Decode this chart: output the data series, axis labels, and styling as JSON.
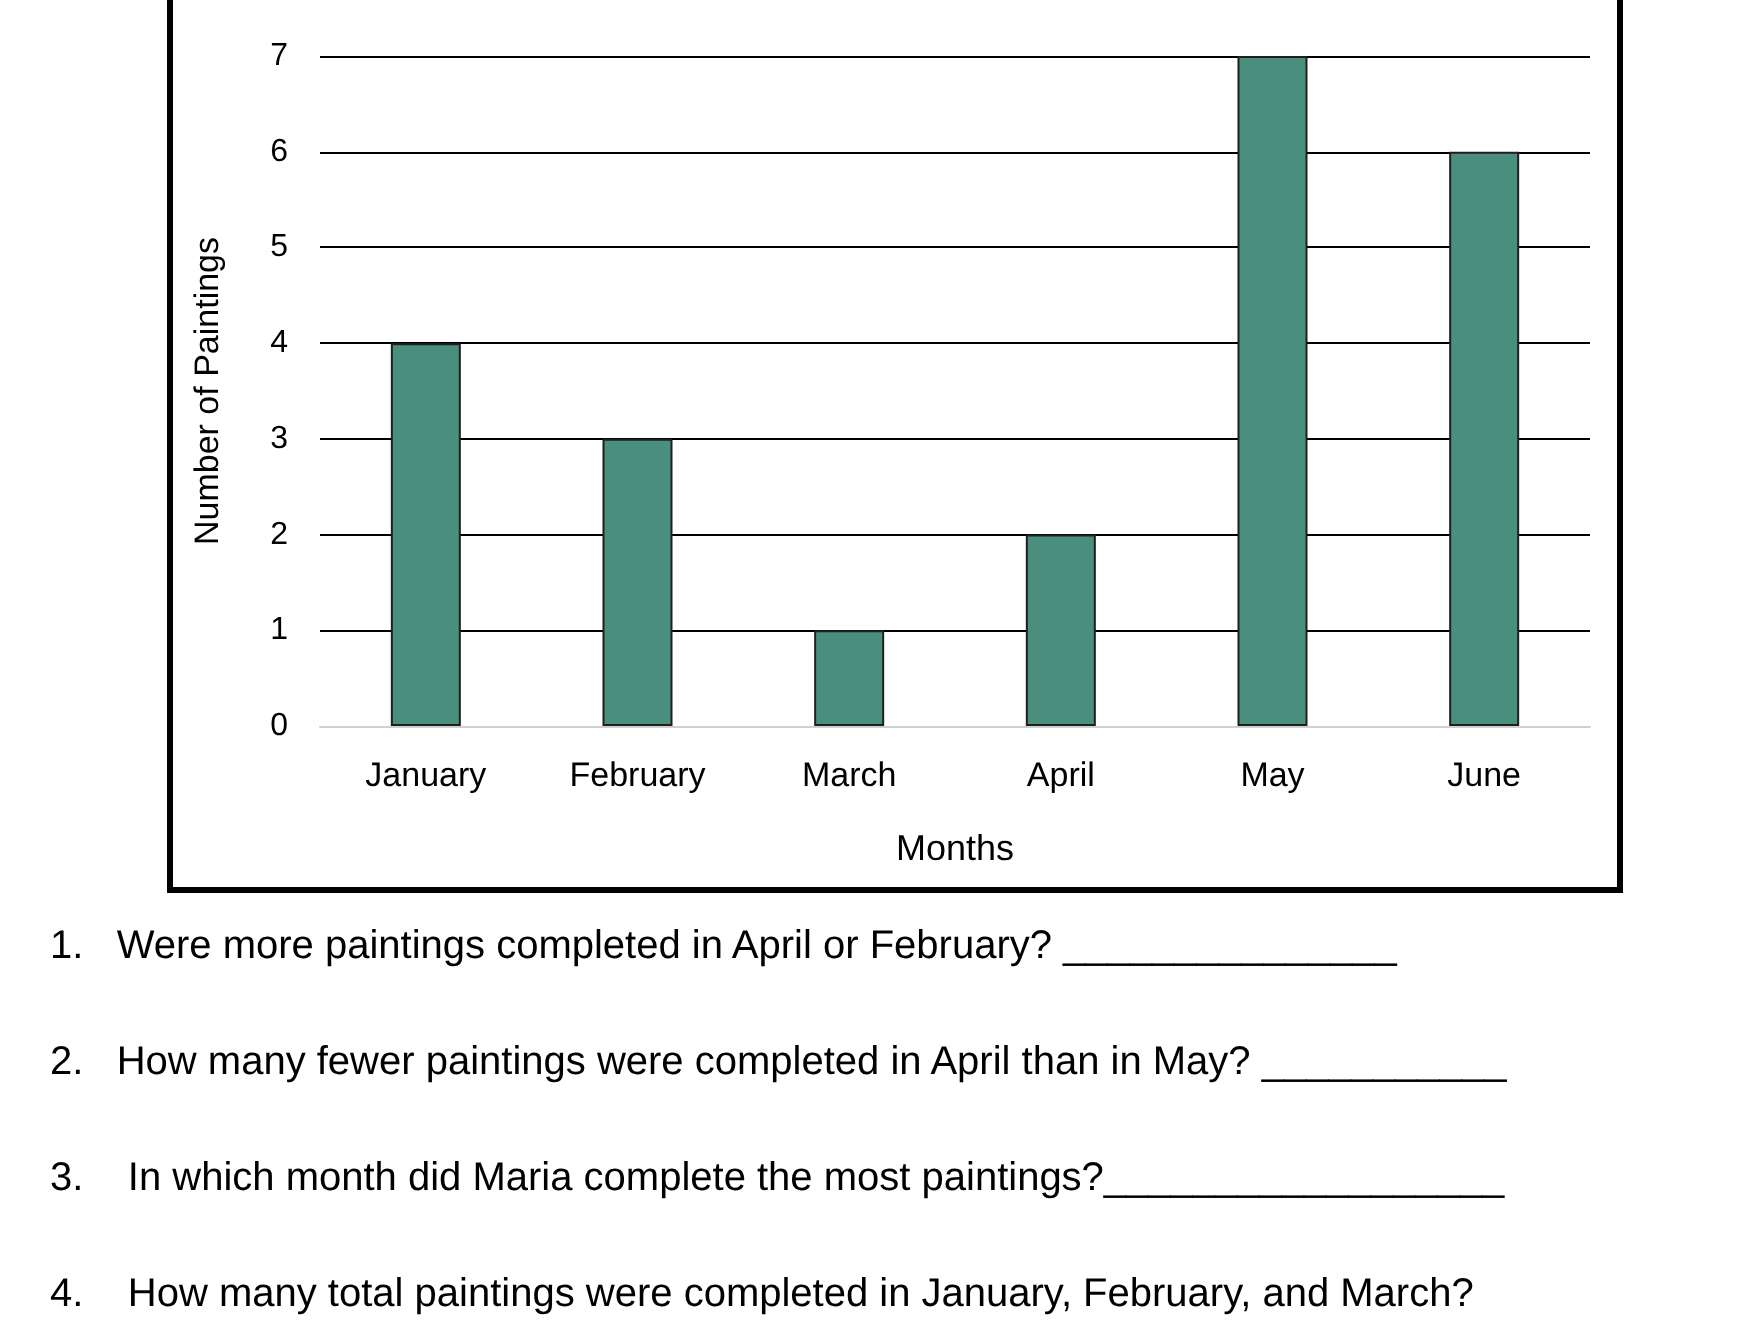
{
  "chart_data": {
    "type": "bar",
    "xlabel": "Months",
    "ylabel": "Number of Paintings",
    "categories": [
      "January",
      "February",
      "March",
      "April",
      "May",
      "June"
    ],
    "values": [
      4,
      3,
      1,
      2,
      7,
      6
    ],
    "color": "#4a8f7e",
    "ylim": [
      0,
      7
    ],
    "yticks": [
      0,
      1,
      2,
      3,
      4,
      5,
      6,
      7
    ],
    "grid": "y",
    "annotations": [
      "1.   Were more paintings completed in April or February? _______________",
      "2.   How many fewer paintings were completed in April than in May? ___________",
      "3.    In which month did Maria complete the most paintings?__________________",
      "4.    How many total paintings were completed in January, February, and March?"
    ]
  }
}
